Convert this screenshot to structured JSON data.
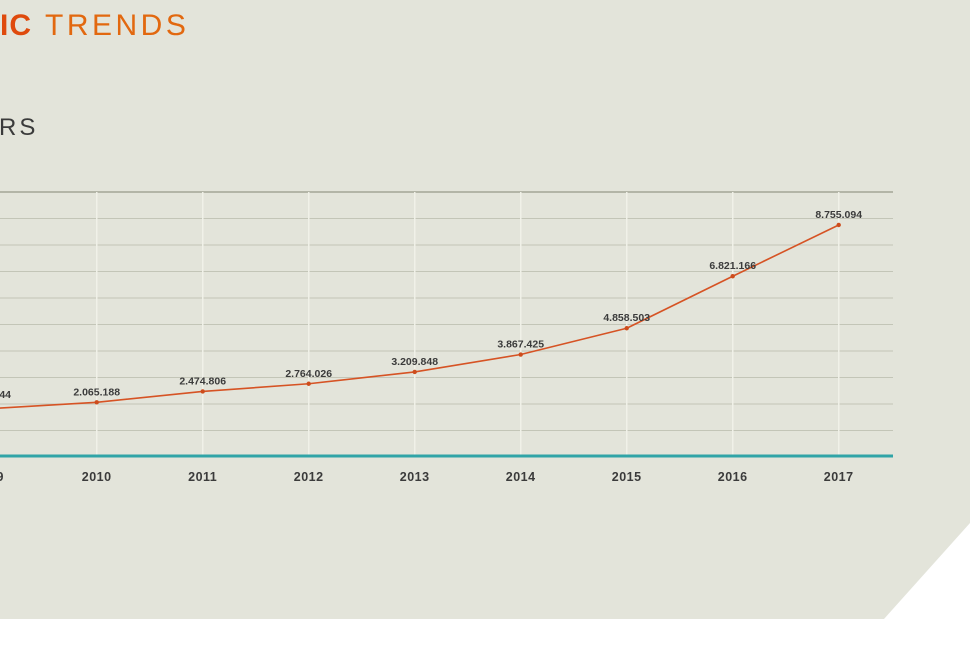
{
  "header": {
    "title_bold_fragment": "IC",
    "title_rest_fragment": "TRENDS",
    "subtitle_fragment": "RS"
  },
  "colors": {
    "sheet_background": "#e3e4da",
    "title_bold": "#df4a0d",
    "title_light": "#e2680f",
    "text_dark": "#3b3b3b",
    "h_gridline": "#c3c5b7",
    "h_gridline_top": "#b3b5a7",
    "v_gridline": "#f0f1e8",
    "axis_teal": "#30a4a7",
    "line_orange": "#d65324",
    "marker_orange": "#cd4c1c"
  },
  "chart_data": {
    "type": "line",
    "x": [
      2010,
      2011,
      2012,
      2013,
      2014,
      2015,
      2016,
      2017
    ],
    "values": [
      2065188,
      2474806,
      2764026,
      3209848,
      3867425,
      4858503,
      6821166,
      8755094
    ],
    "point_labels": [
      "2.065.188",
      "2.474.806",
      "2.764.026",
      "3.209.848",
      "3.867.425",
      "4.858.503",
      "6.821.166",
      "8.755.094"
    ],
    "x_tick_labels": [
      "2010",
      "2011",
      "2012",
      "2013",
      "2014",
      "2015",
      "2016",
      "2017"
    ],
    "clipped_left_point_label_fragment": "44",
    "clipped_left_tick_fragment": "9",
    "title": "",
    "xlabel": "",
    "ylabel": "",
    "ylim": [
      0,
      10000000
    ],
    "y_grid_step": 1000000,
    "grid": true,
    "legend": "none",
    "line_color": "#d65324",
    "axis_color": "#30a4a7"
  }
}
